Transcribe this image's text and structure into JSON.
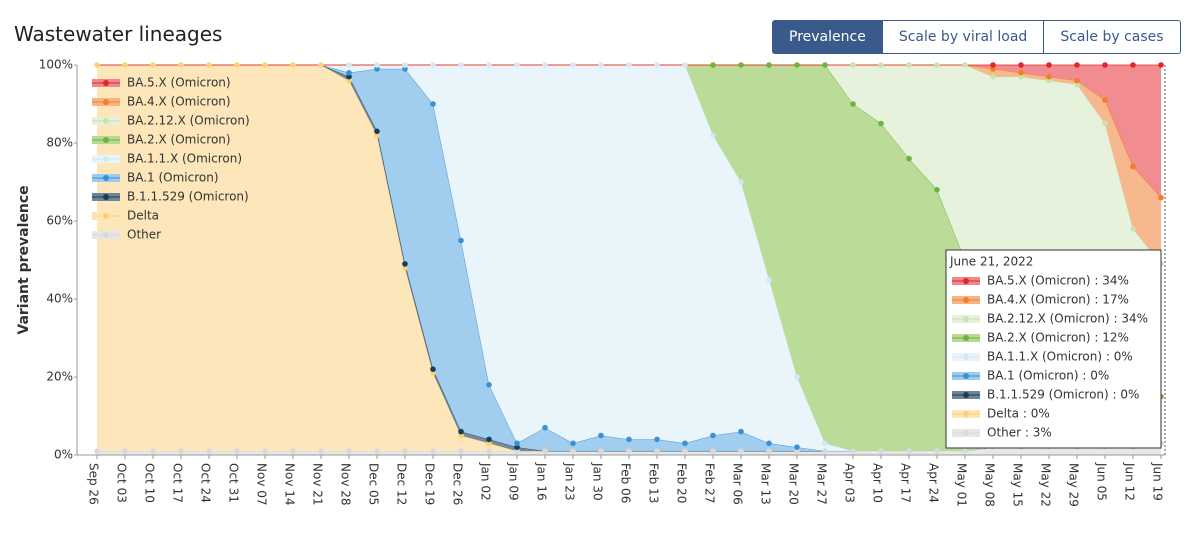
{
  "header": {
    "title": "Wastewater lineages",
    "buttons": [
      "Prevalence",
      "Scale by viral load",
      "Scale by cases"
    ],
    "active_button": 0
  },
  "chart_data": {
    "type": "stacked_area",
    "ylabel": "Variant prevalence",
    "ylim": [
      0,
      100
    ],
    "yticks": [
      {
        "value": 0,
        "label": "0%"
      },
      {
        "value": 20,
        "label": "20%"
      },
      {
        "value": 40,
        "label": "40%"
      },
      {
        "value": 60,
        "label": "60%"
      },
      {
        "value": 80,
        "label": "80%"
      },
      {
        "value": 100,
        "label": "100%"
      }
    ],
    "categories": [
      "Sep 26",
      "Oct 03",
      "Oct 10",
      "Oct 17",
      "Oct 24",
      "Oct 31",
      "Nov 07",
      "Nov 14",
      "Nov 21",
      "Nov 28",
      "Dec 05",
      "Dec 12",
      "Dec 19",
      "Dec 26",
      "Jan 02",
      "Jan 09",
      "Jan 16",
      "Jan 23",
      "Jan 30",
      "Feb 06",
      "Feb 13",
      "Feb 20",
      "Feb 27",
      "Mar 06",
      "Mar 13",
      "Mar 20",
      "Mar 27",
      "Apr 03",
      "Apr 10",
      "Apr 17",
      "Apr 24",
      "May 01",
      "May 08",
      "May 15",
      "May 22",
      "May 29",
      "Jun 05",
      "Jun 12",
      "Jun 19"
    ],
    "legend": "upper left",
    "series": [
      {
        "name": "BA.5.X (Omicron)",
        "color": "#f0878a",
        "point_color": "#e0262b",
        "values": [
          0,
          0,
          0,
          0,
          0,
          0,
          0,
          0,
          0,
          0,
          0,
          0,
          0,
          0,
          0,
          0,
          0,
          0,
          0,
          0,
          0,
          0,
          0,
          0,
          0,
          0,
          0,
          0,
          0,
          0,
          0,
          0,
          1,
          2,
          3,
          4,
          9,
          26,
          34
        ]
      },
      {
        "name": "BA.4.X (Omicron)",
        "color": "#f7b487",
        "point_color": "#f07f26",
        "values": [
          0,
          0,
          0,
          0,
          0,
          0,
          0,
          0,
          0,
          0,
          0,
          0,
          0,
          0,
          0,
          0,
          0,
          0,
          0,
          0,
          0,
          0,
          0,
          0,
          0,
          0,
          0,
          0,
          0,
          0,
          0,
          0,
          2,
          1,
          1,
          1,
          6,
          16,
          17
        ]
      },
      {
        "name": "BA.2.12.X (Omicron)",
        "color": "#e5f1da",
        "point_color": "#c9e3b0",
        "values": [
          0,
          0,
          0,
          0,
          0,
          0,
          0,
          0,
          0,
          0,
          0,
          0,
          0,
          0,
          0,
          0,
          0,
          0,
          0,
          0,
          0,
          0,
          0,
          0,
          0,
          0,
          0,
          10,
          15,
          24,
          32,
          50,
          57,
          62,
          66,
          68,
          61,
          36,
          34
        ]
      },
      {
        "name": "BA.2.X (Omicron)",
        "color": "#b7da92",
        "point_color": "#6cb33f",
        "values": [
          0,
          0,
          0,
          0,
          0,
          0,
          0,
          0,
          0,
          0,
          0,
          0,
          0,
          0,
          0,
          0,
          0,
          0,
          0,
          0,
          0,
          0,
          18,
          30,
          55,
          80,
          97,
          89,
          84,
          75,
          67,
          49,
          38,
          33,
          28,
          25,
          22,
          20,
          12
        ]
      },
      {
        "name": "BA.1.1.X (Omicron)",
        "color": "#e9f3fb",
        "point_color": "#d3e7f6",
        "values": [
          0,
          0,
          0,
          0,
          0,
          0,
          0,
          0,
          0,
          2,
          1,
          1,
          10,
          45,
          82,
          97,
          93,
          97,
          95,
          96,
          96,
          97,
          77,
          64,
          42,
          18,
          2,
          0,
          0,
          0,
          0,
          0,
          0,
          0,
          0,
          0,
          0,
          0,
          0
        ]
      },
      {
        "name": "BA.1 (Omicron)",
        "color": "#9ccbee",
        "point_color": "#3b90d1",
        "values": [
          0,
          0,
          0,
          0,
          0,
          0,
          0,
          0,
          0,
          1,
          16,
          50,
          68,
          49,
          14,
          1,
          6,
          2,
          4,
          3,
          3,
          2,
          4,
          5,
          2,
          1,
          0,
          0,
          0,
          0,
          0,
          0,
          0,
          0,
          0,
          0,
          0,
          0,
          0
        ]
      },
      {
        "name": "B.1.1.529 (Omicron)",
        "color": "#6f8595",
        "point_color": "#173d59",
        "values": [
          0,
          0,
          0,
          0,
          0,
          0,
          0,
          0,
          0,
          1,
          1,
          1,
          1,
          1,
          1,
          1,
          0,
          0,
          0,
          0,
          0,
          0,
          0,
          0,
          0,
          0,
          0,
          0,
          0,
          0,
          0,
          0,
          0,
          0,
          0,
          0,
          0,
          0,
          0
        ]
      },
      {
        "name": "Delta",
        "color": "#fde6b6",
        "point_color": "#fcd17a",
        "values": [
          99,
          99,
          99,
          99,
          99,
          99,
          99,
          99,
          99,
          95,
          81,
          47,
          20,
          4,
          2,
          0,
          0,
          0,
          0,
          0,
          0,
          0,
          0,
          0,
          0,
          0,
          0,
          0,
          0,
          0,
          0,
          0,
          0,
          0,
          0,
          0,
          0,
          0,
          0
        ]
      },
      {
        "name": "Other",
        "color": "#e6e6e6",
        "point_color": "#d9d9d9",
        "values": [
          1,
          1,
          1,
          1,
          1,
          1,
          1,
          1,
          1,
          1,
          1,
          1,
          1,
          1,
          1,
          1,
          1,
          1,
          1,
          1,
          1,
          1,
          1,
          1,
          1,
          1,
          1,
          1,
          1,
          1,
          1,
          1,
          2,
          2,
          2,
          2,
          2,
          2,
          3
        ]
      }
    ],
    "tooltip": {
      "title": "June 21, 2022",
      "rows": [
        "BA.5.X (Omicron) : 34%",
        "BA.4.X (Omicron) : 17%",
        "BA.2.12.X (Omicron) : 34%",
        "BA.2.X (Omicron) : 12%",
        "BA.1.1.X (Omicron) : 0%",
        "BA.1 (Omicron) : 0%",
        "B.1.1.529 (Omicron) : 0%",
        "Delta : 0%",
        "Other : 3%"
      ]
    }
  }
}
